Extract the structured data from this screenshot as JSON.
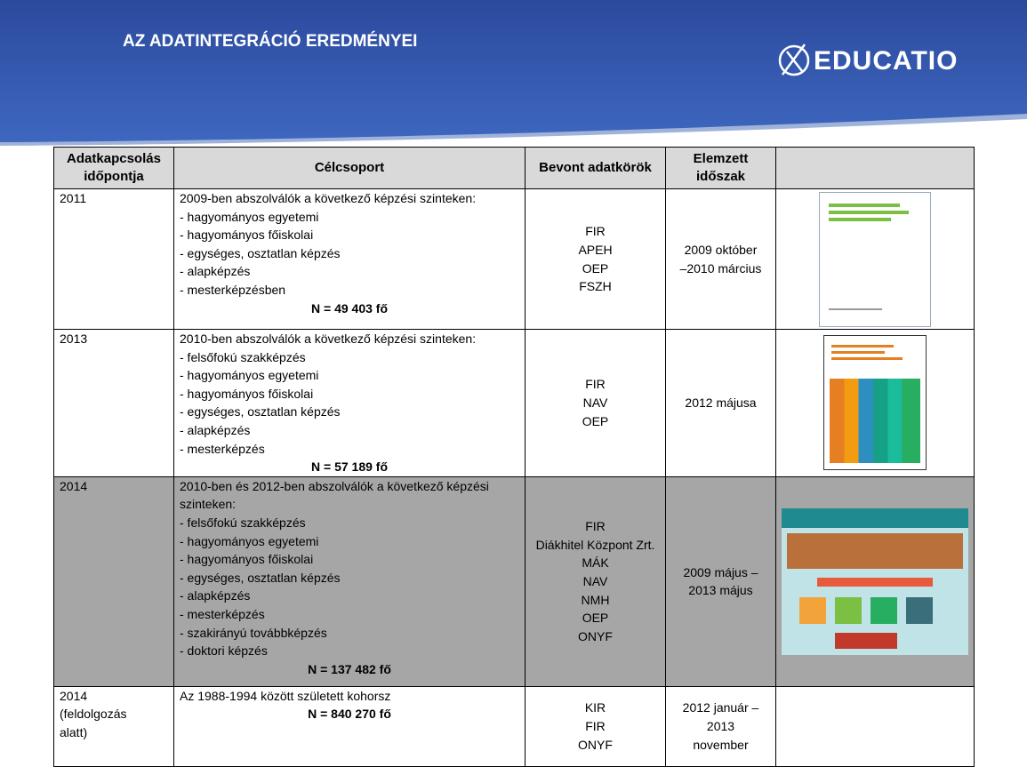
{
  "header": {
    "title": "AZ ADATINTEGRÁCIÓ EREDMÉNYEI",
    "logo": "EDUCATIO"
  },
  "table": {
    "columns": [
      "Adatkapcsolás időpontja",
      "Célcsoport",
      "Bevont adatkörök",
      "Elemzett időszak"
    ],
    "rows": [
      {
        "date": [
          "2011"
        ],
        "target": [
          "2009-ben abszolválók a következő képzési szinteken:",
          "- hagyományos egyetemi",
          "- hagyományos főiskolai",
          "- egységes, osztatlan képzés",
          "- alapképzés",
          "- mesterképzésben"
        ],
        "n": "N = 49 403 fő",
        "sources": [
          "FIR",
          "APEH",
          "OEP",
          "FSZH"
        ],
        "period": [
          "2009 október",
          "–2010 március"
        ]
      },
      {
        "date": [
          "2013"
        ],
        "target": [
          "2010-ben abszolválók a következő képzési szinteken:",
          "- felsőfokú szakképzés",
          "- hagyományos egyetemi",
          "- hagyományos főiskolai",
          "- egységes, osztatlan képzés",
          "- alapképzés",
          "- mesterképzés"
        ],
        "n": "N = 57 189 fő",
        "sources": [
          "FIR",
          "NAV",
          "OEP"
        ],
        "period": [
          "2012 májusa"
        ]
      },
      {
        "date": [
          "2014"
        ],
        "target": [
          "2010-ben és 2012-ben abszolválók a következő képzési",
          "szinteken:",
          "- felsőfokú szakképzés",
          "- hagyományos egyetemi",
          "- hagyományos főiskolai",
          "- egységes, osztatlan képzés",
          "- alapképzés",
          "- mesterképzés",
          "- szakirányú továbbképzés",
          "- doktori képzés"
        ],
        "n": "N = 137 482 fő",
        "sources": [
          "FIR",
          "Diákhitel Központ Zrt.",
          "MÁK",
          "NAV",
          "NMH",
          "OEP",
          "ONYF"
        ],
        "period": [
          "2009 május –",
          "2013 május"
        ]
      },
      {
        "date": [
          "2014",
          "(feldolgozás",
          "alatt)"
        ],
        "target": [
          "Az 1988-1994 között született kohorsz"
        ],
        "n": "N = 840 270 fő",
        "sources": [
          "KIR",
          "FIR",
          "ONYF"
        ],
        "period": [
          "2012 január –",
          "2013",
          "november"
        ]
      }
    ]
  }
}
